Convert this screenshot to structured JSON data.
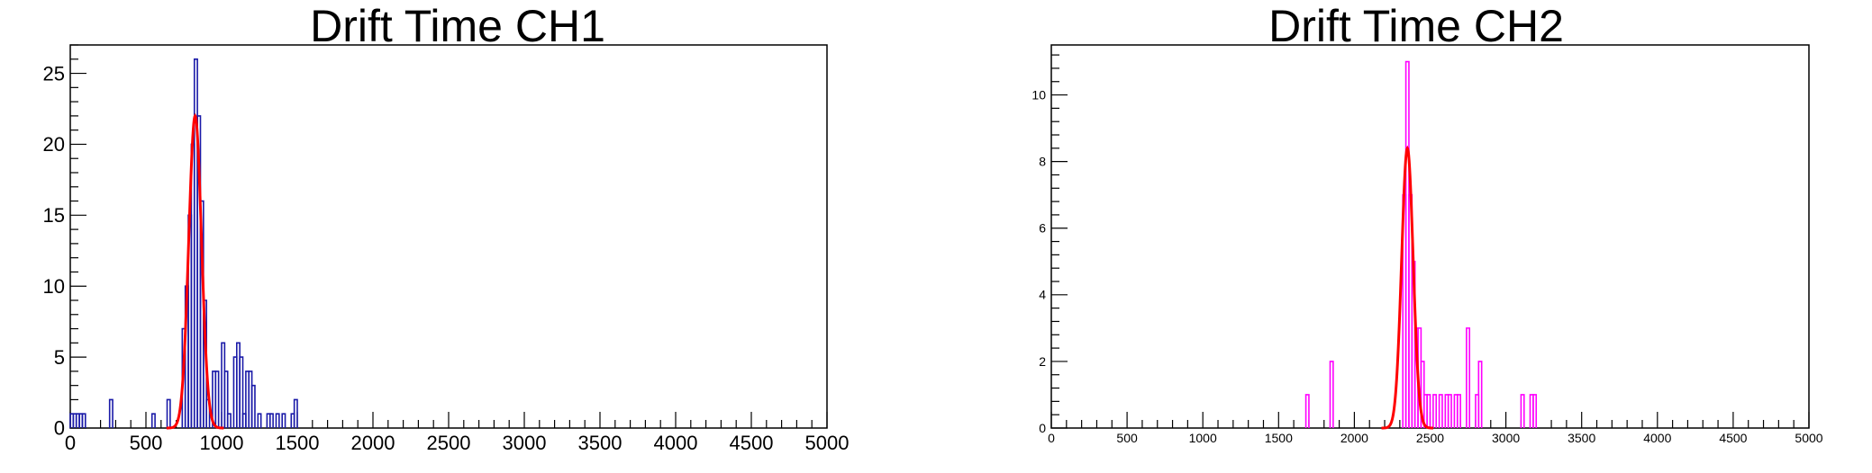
{
  "colors": {
    "ch1_histogram": "#1a1aa8",
    "ch2_histogram": "#ff00ff",
    "fit_curve": "#ff0000",
    "frame": "#000000",
    "tick": "#000000",
    "background": "#ffffff"
  },
  "chart_data": [
    {
      "type": "histogram",
      "title": "Drift Time CH1",
      "xlabel": "",
      "ylabel": "",
      "xlim": [
        0,
        5000
      ],
      "ylim": [
        0,
        27
      ],
      "x_ticks": [
        0,
        500,
        1000,
        1500,
        2000,
        2500,
        3000,
        3500,
        4000,
        4500,
        5000
      ],
      "y_ticks": [
        0,
        5,
        10,
        15,
        20,
        25
      ],
      "bin_width": 20,
      "bins": [
        {
          "x": 0,
          "count": 1
        },
        {
          "x": 20,
          "count": 1
        },
        {
          "x": 40,
          "count": 1
        },
        {
          "x": 60,
          "count": 1
        },
        {
          "x": 80,
          "count": 1
        },
        {
          "x": 260,
          "count": 2
        },
        {
          "x": 540,
          "count": 1
        },
        {
          "x": 640,
          "count": 2
        },
        {
          "x": 740,
          "count": 7
        },
        {
          "x": 760,
          "count": 10
        },
        {
          "x": 780,
          "count": 15
        },
        {
          "x": 800,
          "count": 20
        },
        {
          "x": 820,
          "count": 26
        },
        {
          "x": 840,
          "count": 22
        },
        {
          "x": 860,
          "count": 16
        },
        {
          "x": 880,
          "count": 9
        },
        {
          "x": 900,
          "count": 2
        },
        {
          "x": 940,
          "count": 4
        },
        {
          "x": 960,
          "count": 4
        },
        {
          "x": 1000,
          "count": 6
        },
        {
          "x": 1020,
          "count": 4
        },
        {
          "x": 1040,
          "count": 1
        },
        {
          "x": 1080,
          "count": 5
        },
        {
          "x": 1100,
          "count": 6
        },
        {
          "x": 1120,
          "count": 5
        },
        {
          "x": 1140,
          "count": 1
        },
        {
          "x": 1160,
          "count": 4
        },
        {
          "x": 1180,
          "count": 4
        },
        {
          "x": 1200,
          "count": 3
        },
        {
          "x": 1240,
          "count": 1
        },
        {
          "x": 1300,
          "count": 1
        },
        {
          "x": 1320,
          "count": 1
        },
        {
          "x": 1360,
          "count": 1
        },
        {
          "x": 1400,
          "count": 1
        },
        {
          "x": 1460,
          "count": 1
        },
        {
          "x": 1480,
          "count": 2
        }
      ],
      "fit": {
        "type": "gaussian",
        "amplitude": 22,
        "mean": 825,
        "sigma": 42
      }
    },
    {
      "type": "histogram",
      "title": "Drift Time CH2",
      "xlabel": "",
      "ylabel": "",
      "xlim": [
        0,
        5000
      ],
      "ylim": [
        0,
        11.5
      ],
      "x_ticks": [
        0,
        500,
        1000,
        1500,
        2000,
        2500,
        3000,
        3500,
        4000,
        4500,
        5000
      ],
      "y_ticks": [
        0,
        2,
        4,
        6,
        8,
        10
      ],
      "bin_width": 20,
      "bins": [
        {
          "x": 1680,
          "count": 1
        },
        {
          "x": 1840,
          "count": 2
        },
        {
          "x": 2320,
          "count": 7
        },
        {
          "x": 2340,
          "count": 11
        },
        {
          "x": 2360,
          "count": 7
        },
        {
          "x": 2380,
          "count": 5
        },
        {
          "x": 2400,
          "count": 3
        },
        {
          "x": 2420,
          "count": 3
        },
        {
          "x": 2440,
          "count": 2
        },
        {
          "x": 2460,
          "count": 1
        },
        {
          "x": 2480,
          "count": 1
        },
        {
          "x": 2520,
          "count": 1
        },
        {
          "x": 2560,
          "count": 1
        },
        {
          "x": 2600,
          "count": 1
        },
        {
          "x": 2620,
          "count": 1
        },
        {
          "x": 2660,
          "count": 1
        },
        {
          "x": 2680,
          "count": 1
        },
        {
          "x": 2740,
          "count": 3
        },
        {
          "x": 2800,
          "count": 1
        },
        {
          "x": 2820,
          "count": 2
        },
        {
          "x": 3100,
          "count": 1
        },
        {
          "x": 3160,
          "count": 1
        },
        {
          "x": 3180,
          "count": 1
        }
      ],
      "fit": {
        "type": "gaussian",
        "amplitude": 8.4,
        "mean": 2350,
        "sigma": 38
      }
    }
  ]
}
